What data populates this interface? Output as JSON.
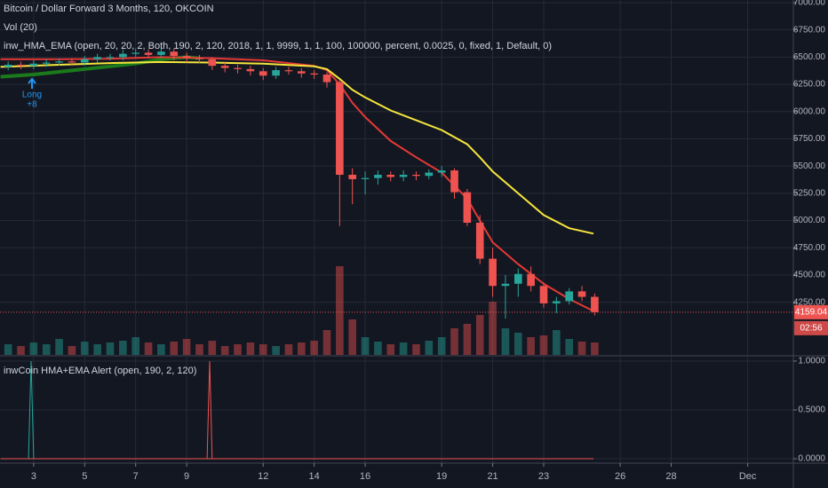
{
  "chart_data": [
    {
      "type": "candlestick",
      "title": "Bitcoin / Dollar Forward 3 Months, 120, OKCOIN",
      "subtitle": "Vol (20)",
      "indicator": "inw_HMA_EMA (open, 20, 20, 2, Both, 190, 2, 120, 2018, 1, 1, 9999, 1, 1, 100, 100000, percent, 0.0025, 0, fixed, 1, Default, 0)",
      "signal_label": "Long",
      "signal_amount": "+8",
      "x": [
        2,
        2.5,
        3,
        3.5,
        4,
        4.5,
        5,
        5.5,
        6,
        6.5,
        7,
        7.5,
        8,
        8.5,
        9,
        9.5,
        10,
        10.5,
        11,
        11.5,
        12,
        12.5,
        13,
        13.5,
        14,
        14.5,
        15,
        15.5,
        16,
        16.5,
        17,
        17.5,
        18,
        18.5,
        19,
        19.5,
        20,
        20.5,
        21,
        21.5,
        22,
        22.5,
        23,
        23.5,
        24,
        24.5,
        25
      ],
      "open": [
        6410,
        6430,
        6420,
        6440,
        6450,
        6460,
        6450,
        6480,
        6500,
        6500,
        6530,
        6540,
        6520,
        6550,
        6510,
        6490,
        6480,
        6420,
        6400,
        6390,
        6370,
        6330,
        6380,
        6370,
        6350,
        6340,
        6270,
        5420,
        5380,
        5390,
        5420,
        5400,
        5420,
        5410,
        5440,
        5460,
        5260,
        4980,
        4650,
        4400,
        4420,
        4510,
        4400,
        4240,
        4260,
        4350,
        4300
      ],
      "high": [
        6460,
        6460,
        6470,
        6480,
        6490,
        6490,
        6510,
        6530,
        6530,
        6570,
        6580,
        6570,
        6590,
        6580,
        6540,
        6520,
        6500,
        6450,
        6430,
        6420,
        6400,
        6410,
        6410,
        6400,
        6380,
        6360,
        6290,
        5480,
        5450,
        5460,
        5450,
        5460,
        5450,
        5470,
        5500,
        5480,
        5290,
        5050,
        4750,
        4500,
        4560,
        4580,
        4430,
        4300,
        4380,
        4400,
        4330
      ],
      "low": [
        6380,
        6390,
        6390,
        6410,
        6420,
        6420,
        6420,
        6450,
        6470,
        6470,
        6500,
        6490,
        6490,
        6470,
        6450,
        6440,
        6380,
        6360,
        6350,
        6330,
        6290,
        6300,
        6340,
        6310,
        6300,
        6220,
        4950,
        5150,
        5240,
        5330,
        5360,
        5360,
        5370,
        5380,
        5400,
        5200,
        4950,
        4600,
        4300,
        4100,
        4300,
        4350,
        4200,
        4150,
        4230,
        4260,
        4130
      ],
      "close": [
        6430,
        6420,
        6440,
        6450,
        6460,
        6450,
        6480,
        6500,
        6500,
        6530,
        6540,
        6520,
        6550,
        6510,
        6490,
        6480,
        6420,
        6400,
        6390,
        6370,
        6330,
        6380,
        6370,
        6350,
        6340,
        6270,
        5420,
        5380,
        5390,
        5420,
        5400,
        5420,
        5410,
        5440,
        5460,
        5260,
        4980,
        4650,
        4400,
        4420,
        4510,
        4400,
        4240,
        4260,
        4350,
        4300,
        4159.04
      ],
      "volume": [
        12,
        10,
        14,
        12,
        18,
        10,
        15,
        12,
        14,
        16,
        20,
        14,
        12,
        15,
        18,
        12,
        16,
        10,
        12,
        14,
        12,
        10,
        12,
        14,
        16,
        28,
        100,
        40,
        20,
        15,
        12,
        14,
        12,
        16,
        20,
        30,
        35,
        45,
        60,
        30,
        25,
        20,
        22,
        28,
        18,
        15,
        14
      ],
      "up_color": "#26a69a",
      "down_color": "#ef5350",
      "lines": [
        {
          "color": "#1b7a1b",
          "x": [
            1.7,
            3,
            5,
            7,
            8,
            9,
            9.5
          ],
          "values": [
            6320,
            6340,
            6390,
            6440,
            6480,
            6500,
            6490
          ]
        },
        {
          "color": "#e53935",
          "x": [
            1.7,
            4,
            6,
            8,
            10,
            12,
            14,
            14.5,
            15,
            15.5,
            16,
            17,
            18,
            19,
            20,
            20.5,
            21,
            22,
            23,
            24,
            24.95
          ],
          "values": [
            6480,
            6480,
            6485,
            6500,
            6490,
            6470,
            6420,
            6380,
            6250,
            6080,
            5950,
            5730,
            5580,
            5440,
            5200,
            5000,
            4800,
            4600,
            4420,
            4280,
            4170
          ]
        },
        {
          "color": "#f5e63c",
          "x": [
            1.7,
            4,
            6,
            8,
            10,
            12,
            14,
            14.5,
            15,
            15.5,
            16,
            17,
            18,
            19,
            20,
            20.5,
            21,
            22,
            23,
            24,
            24.95
          ],
          "values": [
            6410,
            6430,
            6445,
            6455,
            6450,
            6440,
            6415,
            6390,
            6300,
            6200,
            6130,
            6010,
            5920,
            5830,
            5700,
            5580,
            5450,
            5250,
            5050,
            4930,
            4880
          ]
        }
      ],
      "last_price": 4159.04,
      "countdown": "02:56",
      "xlim": [
        1.68,
        32.79
      ],
      "xticks": [
        3,
        5,
        7,
        9,
        12,
        14,
        16,
        19,
        21,
        23,
        26,
        28,
        {
          "value": 31,
          "label": "Dec"
        }
      ],
      "ylim": [
        3767,
        7024
      ],
      "yticks": [
        {
          "value": 7000,
          "label": "7000.00"
        },
        {
          "value": 6750,
          "label": "6750.00"
        },
        {
          "value": 6500,
          "label": "6500.00"
        },
        {
          "value": 6250,
          "label": "6250.00"
        },
        {
          "value": 6000,
          "label": "6000.00"
        },
        {
          "value": 5750,
          "label": "5750.00"
        },
        {
          "value": 5500,
          "label": "5500.00"
        },
        {
          "value": 5250,
          "label": "5250.00"
        },
        {
          "value": 5000,
          "label": "5000.00"
        },
        {
          "value": 4750,
          "label": "4750.00"
        },
        {
          "value": 4500,
          "label": "4500.00"
        },
        {
          "value": 4250,
          "label": "4250.00"
        }
      ],
      "grid": true
    },
    {
      "type": "line",
      "title": "inwCoin HMA+EMA Alert (open, 190, 2, 120)",
      "series": [
        {
          "color": "#26a69a",
          "x": [
            2.8,
            2.9,
            3.0
          ],
          "values": [
            0,
            1,
            0
          ]
        },
        {
          "color": "#ef5350",
          "x": [
            9.8,
            9.9,
            10.0
          ],
          "values": [
            0,
            1,
            0
          ]
        },
        {
          "color": "#ef5350",
          "x": [
            1.7,
            24.95
          ],
          "values": [
            0,
            0
          ]
        }
      ],
      "ylim": [
        -0.045,
        1.045
      ],
      "yticks": [
        {
          "value": 1,
          "label": "1.0000"
        },
        {
          "value": 0.5,
          "label": "0.5000"
        },
        {
          "value": 0,
          "label": "0.0000"
        }
      ],
      "grid": true
    }
  ]
}
